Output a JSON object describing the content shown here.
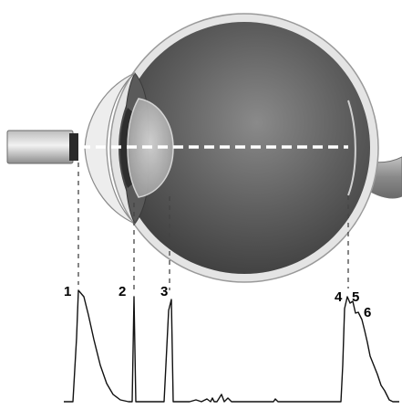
{
  "figure": {
    "labels": [
      {
        "id": "1",
        "text": "1"
      },
      {
        "id": "2",
        "text": "2"
      },
      {
        "id": "3",
        "text": "3"
      },
      {
        "id": "4",
        "text": "4"
      },
      {
        "id": "5",
        "text": "5"
      },
      {
        "id": "6",
        "text": "6"
      }
    ]
  },
  "colors": {
    "background": "#ffffff",
    "ink": "#000000",
    "eyeball_dark": "#4a4a4a",
    "eyeball_mid": "#767676",
    "sclera": "#d9d9d9",
    "lens": "#bfbfbf",
    "probe": "#9a9a9a",
    "beam": "#ffffff"
  }
}
